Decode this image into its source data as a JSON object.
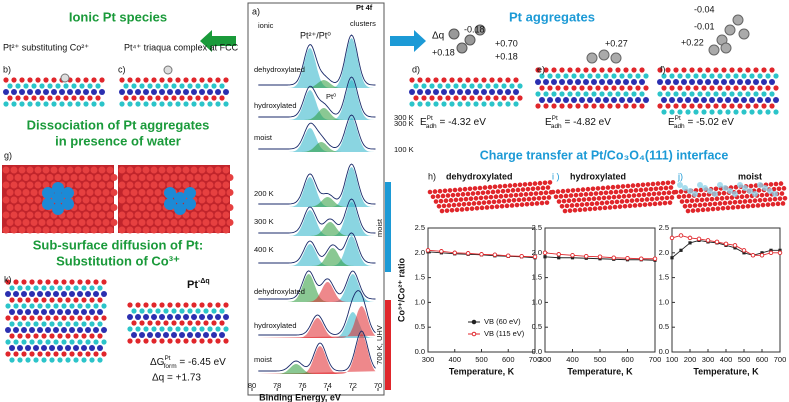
{
  "figure": {
    "ionic_title": "Ionic Pt species",
    "b_label": "b)",
    "b_caption": "Pt²⁺ substituting Co²⁺",
    "c_label": "c)",
    "c_caption": "Pt⁴⁺ triaqua complex at FCC",
    "dissoc_title": [
      "Dissociation of Pt aggregates",
      "in presence of water"
    ],
    "g_label": "g)",
    "subsurf_title": [
      "Sub-surface diffusion of Pt:",
      "Substitution of Co³⁺"
    ],
    "k_label": "k)",
    "k_pt": {
      "main": "Pt",
      "sup": "-Δq"
    },
    "k_dg": {
      "main": "ΔG",
      "sup": "Pt",
      "sub": "form",
      "rest": " = -6.45 eV"
    },
    "k_dq": "Δq = +1.73",
    "spectra": {
      "label": "a)",
      "title": "Pt 4f",
      "ionic": "ionic",
      "clusters": "clusters",
      "ratio": "Pt²⁺/Pt⁰",
      "pt0": "Pt⁰",
      "traces": [
        "dehydroxylated",
        "hydroxylated",
        "moist",
        "dehydroxylated",
        "hydroxylated",
        "moist"
      ],
      "temps": [
        "300 K",
        "300 K",
        "100 K",
        "200 K",
        "300 K",
        "400 K"
      ],
      "moist_bar": "moist",
      "uhv_bar": "700 K, UHV",
      "xlabel": "Binding Energy, eV",
      "xlim": [
        80,
        70
      ],
      "xticks": [
        80,
        78,
        76,
        74,
        72,
        70
      ]
    },
    "aggregates_title": "Pt aggregates",
    "d_label": "d)",
    "e_label": "e)",
    "f_label": "f)",
    "d_charges": [
      "Δq",
      "-0.18",
      "+0.18",
      "+0.70",
      "+0.18"
    ],
    "e_charges": [
      "+0.27"
    ],
    "f_charges": [
      "-0.04",
      "-0.01",
      "+0.22"
    ],
    "energies": [
      {
        "main": "E",
        "sup": "Pt",
        "sub": "adh",
        "rest": " = -4.32 eV"
      },
      {
        "main": "E",
        "sup": "Pt",
        "sub": "adh",
        "rest": " = -4.82 eV"
      },
      {
        "main": "E",
        "sup": "Pt",
        "sub": "adh",
        "rest": " = -5.02 eV"
      }
    ],
    "charge_title": "Charge transfer at Pt/Co₃O₄(111) interface",
    "h_label": "h)",
    "h_caption": "dehydroxylated",
    "i_label": "i )",
    "i_caption": "hydroxylated",
    "j_label": "j)",
    "j_caption": "moist"
  },
  "chart_data": [
    {
      "type": "line",
      "ylabel": "Co³⁺/Co²⁺ ratio",
      "xlabel": "Temperature, K",
      "legend": "bottom-left",
      "x": [
        300,
        350,
        400,
        450,
        500,
        550,
        600,
        650,
        700
      ],
      "xlim": [
        300,
        700
      ],
      "xticks": [
        300,
        400,
        500,
        600,
        700
      ],
      "ylim": [
        0,
        2.5
      ],
      "yticks": [
        {
          "value": 0,
          "label": "0.0"
        },
        0.5,
        {
          "value": 1,
          "label": "1.0"
        },
        1.5,
        {
          "value": 2,
          "label": "2.0"
        },
        2.5
      ],
      "series": [
        {
          "name": "VB (60 eV)",
          "color": "#222222",
          "values": [
            2.02,
            2.0,
            1.98,
            1.97,
            1.96,
            1.94,
            1.93,
            1.92,
            1.9
          ]
        },
        {
          "name": "VB (115 eV)",
          "color": "#e0262b",
          "values": [
            2.05,
            2.03,
            2.0,
            1.99,
            1.97,
            1.96,
            1.94,
            1.93,
            1.92
          ]
        }
      ]
    },
    {
      "type": "line",
      "xlabel": "Temperature, K",
      "x": [
        300,
        350,
        400,
        450,
        500,
        550,
        600,
        650,
        700
      ],
      "xlim": [
        300,
        700
      ],
      "xticks": [
        300,
        400,
        500,
        600,
        700
      ],
      "ylim": [
        0,
        2.5
      ],
      "yticks": [
        {
          "value": 0,
          "label": "0.0"
        },
        0.5,
        {
          "value": 1,
          "label": "1.0"
        },
        1.5,
        {
          "value": 2,
          "label": "2.0"
        },
        2.5
      ],
      "series": [
        {
          "color": "#222222",
          "values": [
            1.92,
            1.9,
            1.9,
            1.89,
            1.88,
            1.87,
            1.86,
            1.86,
            1.85
          ]
        },
        {
          "color": "#e0262b",
          "values": [
            2.0,
            1.97,
            1.95,
            1.93,
            1.92,
            1.9,
            1.89,
            1.88,
            1.88
          ]
        }
      ]
    },
    {
      "type": "line",
      "xlabel": "Temperature, K",
      "x": [
        100,
        150,
        200,
        250,
        300,
        350,
        400,
        450,
        500,
        550,
        600,
        650,
        700
      ],
      "xlim": [
        100,
        700
      ],
      "xticks": [
        100,
        200,
        300,
        400,
        500,
        600,
        700
      ],
      "ylim": [
        0,
        2.5
      ],
      "yticks": [
        {
          "value": 0,
          "label": "0.0"
        },
        0.5,
        {
          "value": 1,
          "label": "1.0"
        },
        1.5,
        {
          "value": 2,
          "label": "2.0"
        },
        2.5
      ],
      "series": [
        {
          "color": "#222222",
          "values": [
            1.9,
            2.05,
            2.2,
            2.25,
            2.22,
            2.2,
            2.15,
            2.1,
            2.0,
            1.95,
            2.0,
            2.05,
            2.05
          ]
        },
        {
          "color": "#e0262b",
          "values": [
            2.3,
            2.35,
            2.3,
            2.28,
            2.25,
            2.22,
            2.18,
            2.15,
            2.05,
            1.95,
            1.95,
            2.0,
            2.0
          ]
        }
      ]
    }
  ]
}
